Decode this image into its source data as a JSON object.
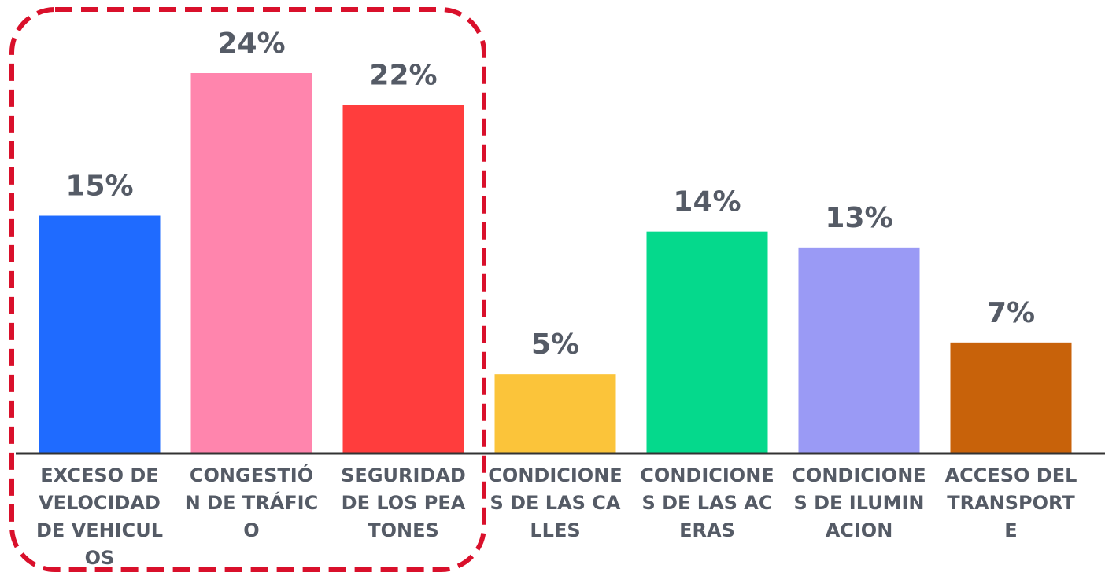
{
  "chart_data": {
    "type": "bar",
    "categories": [
      "EXCESO DE VELOCIDAD DE VEHICULOS",
      "CONGESTIÓN DE TRÁFICO",
      "SEGURIDAD DE LOS PEATONES",
      "CONDICIONES DE LAS CALLES",
      "CONDICIONES DE LAS ACERAS",
      "CONDICIONES DE ILUMINACION",
      "ACCESO DEL TRANSPORTE"
    ],
    "values": [
      15,
      24,
      22,
      5,
      14,
      13,
      7
    ],
    "value_labels": [
      "15%",
      "24%",
      "22%",
      "5%",
      "14%",
      "13%",
      "7%"
    ],
    "colors": [
      "#1f6bff",
      "#ff85ad",
      "#ff3d3d",
      "#fbc43a",
      "#05d98c",
      "#9a9af5",
      "#c8620a"
    ]
  }
}
